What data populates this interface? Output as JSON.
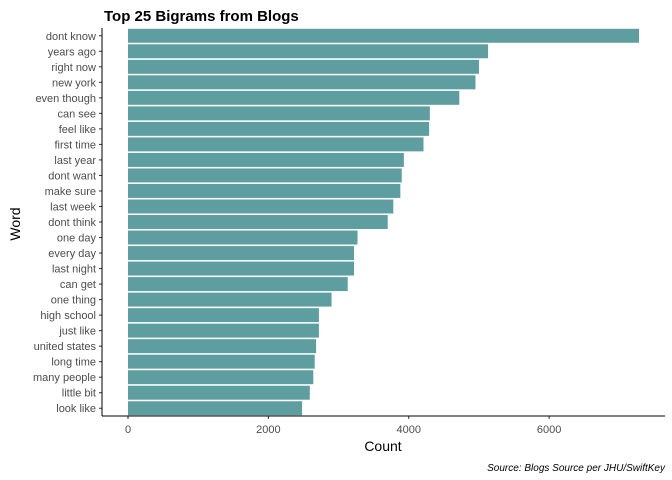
{
  "chart_data": {
    "type": "bar",
    "orientation": "horizontal",
    "title": "Top 25 Bigrams from Blogs",
    "xlabel": "Count",
    "ylabel": "Word",
    "caption": "Source: Blogs Source per JHU/SwiftKey",
    "bar_color": "#5f9ea0",
    "grid": false,
    "xlim": [
      0,
      7300
    ],
    "xticks": [
      0,
      2000,
      4000,
      6000
    ],
    "categories": [
      "dont know",
      "years ago",
      "right now",
      "new york",
      "even though",
      "can see",
      "feel like",
      "first time",
      "last year",
      "dont want",
      "make sure",
      "last week",
      "dont think",
      "one day",
      "every day",
      "last night",
      "can get",
      "one thing",
      "high school",
      "just like",
      "united states",
      "long time",
      "many people",
      "little bit",
      "look like"
    ],
    "values": [
      7280,
      5130,
      5000,
      4950,
      4720,
      4300,
      4290,
      4210,
      3930,
      3900,
      3880,
      3780,
      3700,
      3270,
      3220,
      3220,
      3130,
      2900,
      2720,
      2720,
      2680,
      2660,
      2640,
      2590,
      2480
    ]
  }
}
